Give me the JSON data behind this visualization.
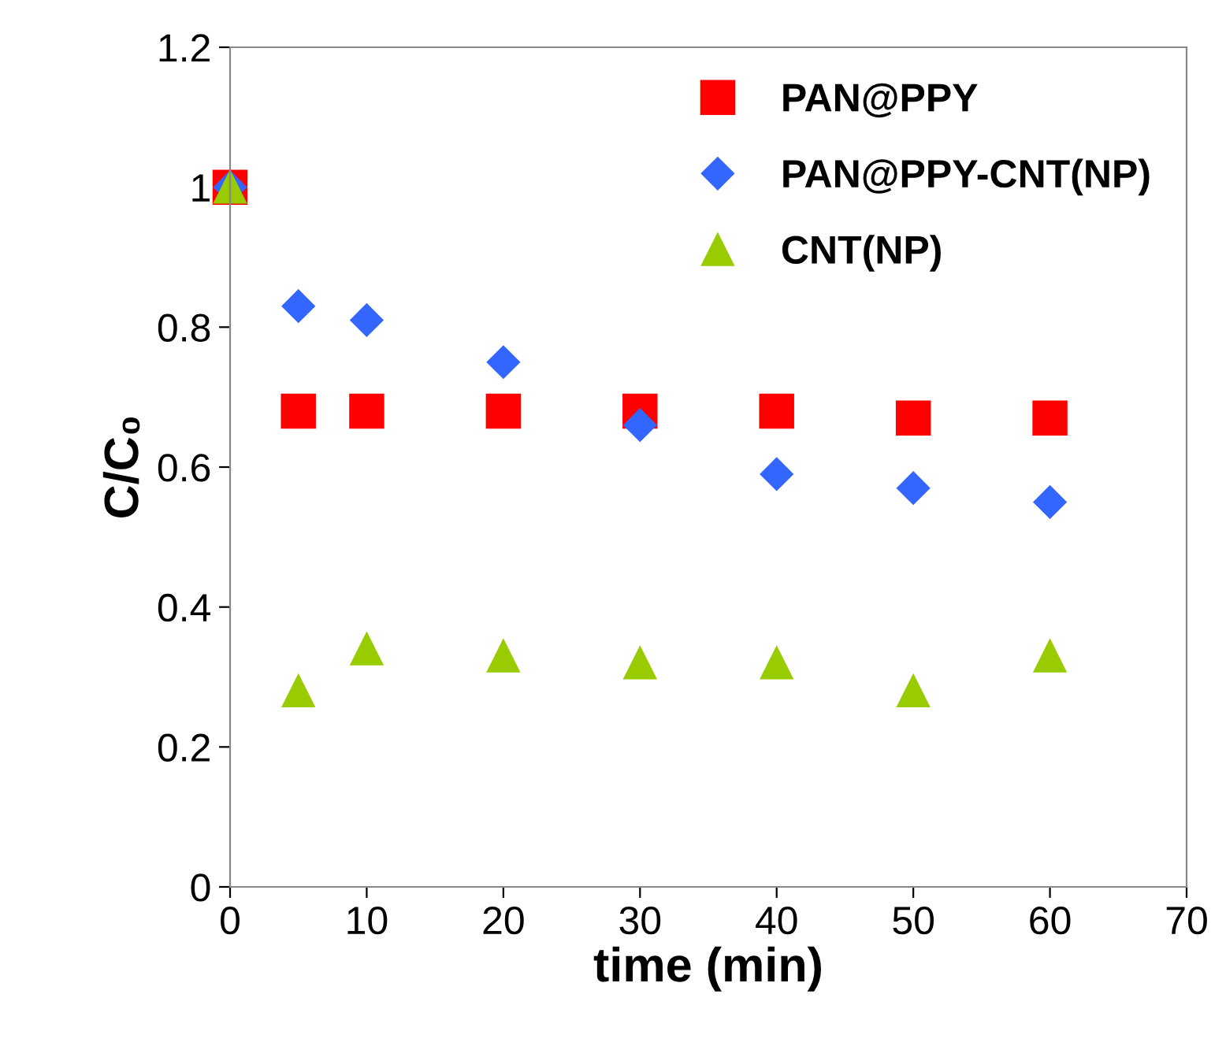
{
  "chart_data": {
    "type": "scatter",
    "xlabel": "time (min)",
    "ylabel": "C/C₀",
    "x": [
      0,
      5,
      10,
      20,
      30,
      40,
      50,
      60
    ],
    "series": [
      {
        "name": "PAN@PPY",
        "color": "#ff0000",
        "marker": "square",
        "values": [
          1.0,
          0.68,
          0.68,
          0.68,
          0.68,
          0.68,
          0.67,
          0.67
        ]
      },
      {
        "name": "PAN@PPY-CNT(NP)",
        "color": "#3366ff",
        "marker": "diamond",
        "values": [
          1.0,
          0.83,
          0.81,
          0.75,
          0.66,
          0.59,
          0.57,
          0.55
        ]
      },
      {
        "name": "CNT(NP)",
        "color": "#99cc00",
        "marker": "triangle",
        "values": [
          1.0,
          0.28,
          0.34,
          0.33,
          0.32,
          0.32,
          0.28,
          0.33
        ]
      }
    ],
    "xlim": [
      0,
      70
    ],
    "xticks": [
      0,
      10,
      20,
      30,
      40,
      50,
      60,
      70
    ],
    "ylim": [
      0,
      1.2
    ],
    "yticks": [
      0,
      {
        "value": 0.2,
        "label": "0.2"
      },
      {
        "value": 0.4,
        "label": "0.4"
      },
      {
        "value": 0.6,
        "label": "0.6"
      },
      {
        "value": 0.8,
        "label": "0.8"
      },
      1,
      {
        "value": 1.2,
        "label": "1.2"
      }
    ],
    "grid": false,
    "legend": "top right"
  }
}
